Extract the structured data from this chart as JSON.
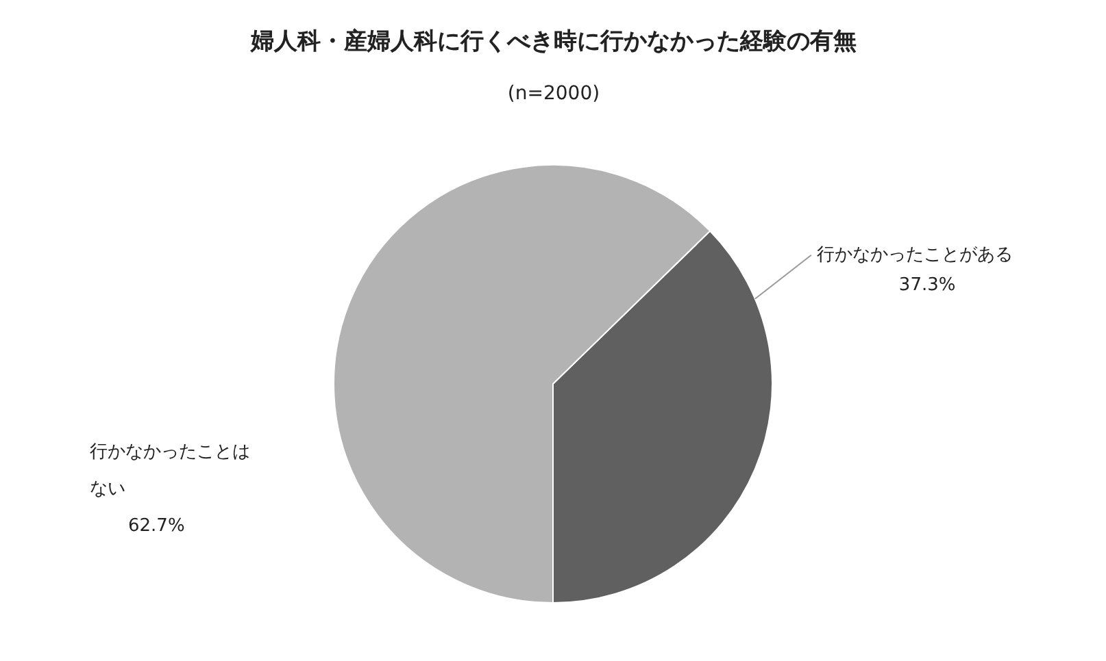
{
  "chart_data": {
    "type": "pie",
    "title": "婦人科・産婦人科に行くべき時に行かなかった経験の有無",
    "subtitle": "(n=2000)",
    "categories": [
      "行かなかったことがある",
      "行かなかったことはない"
    ],
    "values": [
      37.3,
      62.7
    ],
    "colors": [
      "#606060",
      "#b3b3b3"
    ],
    "value_labels": [
      "37.3%",
      "62.7%"
    ]
  }
}
